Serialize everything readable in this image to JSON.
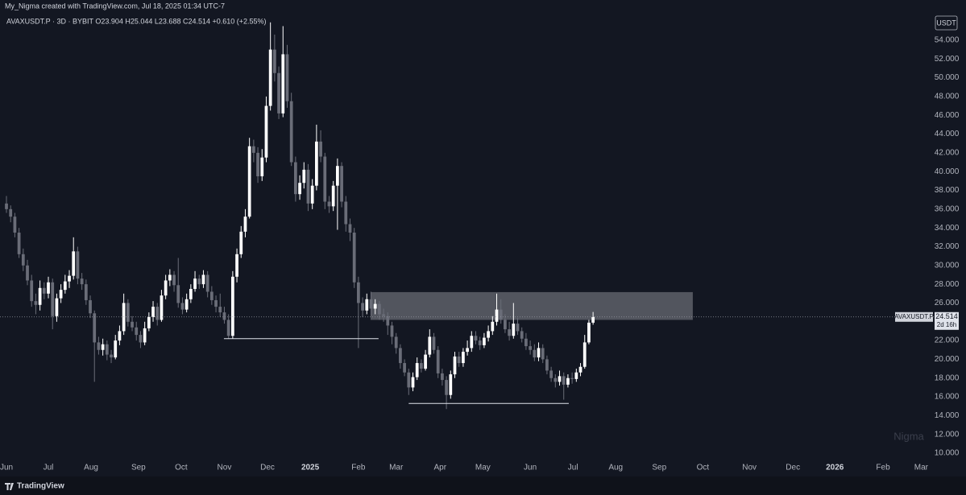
{
  "header": "My_Nigma created with TradingView.com, Jul 18, 2025 01:34 UTC-7",
  "footer": "TradingView",
  "currency_button": "USDT",
  "watermark": "Nigma",
  "chart_data": {
    "type": "candlestick",
    "legend": "AVAXUSDT.P · 3D · BYBIT  O23.904  H25.044  L23.688  C24.514  +0.610 (+2.55%)",
    "up_color": "#ffffff",
    "down_color": "#6a6d78",
    "grid": false,
    "log_scale": false,
    "xlim": [
      -1.54,
      221.5
    ],
    "xticks": [
      {
        "value": 0,
        "label": "Jun"
      },
      {
        "value": 10,
        "label": "Jul"
      },
      {
        "value": 20.2,
        "label": "Aug"
      },
      {
        "value": 31.5,
        "label": "Sep"
      },
      {
        "value": 41.7,
        "label": "Oct"
      },
      {
        "value": 52,
        "label": "Nov"
      },
      {
        "value": 62.3,
        "label": "Dec"
      },
      {
        "value": 72.5,
        "label": "2025"
      },
      {
        "value": 84,
        "label": "Feb"
      },
      {
        "value": 93,
        "label": "Mar"
      },
      {
        "value": 103.5,
        "label": "Apr"
      },
      {
        "value": 113.7,
        "label": "May"
      },
      {
        "value": 125,
        "label": "Jun"
      },
      {
        "value": 135.2,
        "label": "Jul"
      },
      {
        "value": 145.4,
        "label": "Aug"
      },
      {
        "value": 155.8,
        "label": "Sep"
      },
      {
        "value": 166.2,
        "label": "Oct"
      },
      {
        "value": 177.3,
        "label": "Nov"
      },
      {
        "value": 187.7,
        "label": "Dec"
      },
      {
        "value": 197.7,
        "label": "2026"
      },
      {
        "value": 209.2,
        "label": "Feb"
      },
      {
        "value": 218.3,
        "label": "Mar"
      }
    ],
    "ylim": [
      9.23,
      56.74
    ],
    "yticks": [
      {
        "value": 10,
        "label": "10.000"
      },
      {
        "value": 12,
        "label": "12.000"
      },
      {
        "value": 14,
        "label": "14.000"
      },
      {
        "value": 16,
        "label": "16.000"
      },
      {
        "value": 18,
        "label": "18.000"
      },
      {
        "value": 20,
        "label": "20.000"
      },
      {
        "value": 22,
        "label": "22.000"
      },
      {
        "value": 24,
        "label": "24.000"
      },
      {
        "value": 26,
        "label": "26.000"
      },
      {
        "value": 28,
        "label": "28.000"
      },
      {
        "value": 30,
        "label": "30.000"
      },
      {
        "value": 32,
        "label": "32.000"
      },
      {
        "value": 34,
        "label": "34.000"
      },
      {
        "value": 36,
        "label": "36.000"
      },
      {
        "value": 38,
        "label": "38.000"
      },
      {
        "value": 40,
        "label": "40.000"
      },
      {
        "value": 42,
        "label": "42.000"
      },
      {
        "value": 44,
        "label": "44.000"
      },
      {
        "value": 46,
        "label": "46.000"
      },
      {
        "value": 48,
        "label": "48.000"
      },
      {
        "value": 50,
        "label": "50.000"
      },
      {
        "value": 52,
        "label": "52.000"
      },
      {
        "value": 54,
        "label": "54.000"
      }
    ],
    "candles": [
      [
        36.6,
        37.4,
        35.6,
        36.0
      ],
      [
        36.0,
        36.4,
        34.6,
        35.2
      ],
      [
        35.2,
        35.6,
        33.0,
        33.5
      ],
      [
        33.5,
        34.0,
        30.8,
        31.2
      ],
      [
        31.2,
        31.8,
        29.4,
        30.0
      ],
      [
        30.0,
        30.6,
        27.9,
        28.4
      ],
      [
        28.4,
        29.0,
        25.6,
        26.2
      ],
      [
        26.2,
        27.0,
        24.8,
        25.8
      ],
      [
        25.8,
        28.4,
        25.2,
        27.6
      ],
      [
        27.6,
        28.2,
        26.4,
        27.0
      ],
      [
        27.0,
        28.8,
        26.5,
        28.2
      ],
      [
        28.2,
        28.6,
        23.2,
        24.6
      ],
      [
        24.6,
        27.0,
        24.0,
        26.5
      ],
      [
        26.5,
        28.0,
        26.0,
        27.4
      ],
      [
        27.4,
        29.0,
        27.0,
        28.3
      ],
      [
        28.3,
        29.5,
        27.6,
        28.9
      ],
      [
        28.9,
        33.0,
        28.5,
        31.5
      ],
      [
        31.5,
        32.0,
        28.0,
        28.6
      ],
      [
        28.6,
        29.2,
        27.4,
        28.0
      ],
      [
        28.0,
        28.5,
        25.8,
        26.3
      ],
      [
        26.3,
        26.8,
        24.4,
        24.9
      ],
      [
        24.9,
        25.2,
        17.6,
        21.8
      ],
      [
        21.8,
        22.4,
        20.5,
        21.0
      ],
      [
        21.0,
        22.2,
        20.4,
        21.6
      ],
      [
        21.6,
        22.0,
        19.9,
        20.5
      ],
      [
        20.5,
        21.0,
        19.6,
        20.2
      ],
      [
        20.2,
        22.6,
        20.0,
        22.0
      ],
      [
        22.0,
        23.6,
        21.5,
        23.0
      ],
      [
        23.0,
        27.0,
        22.6,
        26.0
      ],
      [
        26.0,
        26.4,
        23.5,
        24.0
      ],
      [
        24.0,
        24.6,
        23.0,
        23.4
      ],
      [
        23.4,
        24.0,
        22.0,
        22.6
      ],
      [
        22.6,
        23.0,
        21.2,
        21.8
      ],
      [
        21.8,
        24.0,
        21.5,
        23.3
      ],
      [
        23.3,
        25.0,
        23.0,
        24.5
      ],
      [
        24.5,
        26.2,
        24.0,
        25.6
      ],
      [
        25.6,
        26.0,
        23.6,
        24.2
      ],
      [
        24.2,
        27.4,
        24.0,
        26.8
      ],
      [
        26.8,
        29.0,
        26.4,
        28.4
      ],
      [
        28.4,
        29.6,
        27.8,
        29.0
      ],
      [
        29.0,
        29.4,
        27.2,
        27.9
      ],
      [
        27.9,
        30.8,
        25.5,
        26.0
      ],
      [
        26.0,
        26.6,
        24.8,
        25.3
      ],
      [
        25.3,
        27.0,
        25.0,
        26.4
      ],
      [
        26.4,
        28.0,
        26.0,
        27.5
      ],
      [
        27.5,
        29.4,
        27.2,
        28.6
      ],
      [
        28.6,
        29.0,
        27.5,
        28.0
      ],
      [
        28.0,
        29.5,
        27.6,
        29.0
      ],
      [
        29.0,
        29.4,
        26.6,
        27.2
      ],
      [
        27.2,
        27.8,
        25.8,
        26.3
      ],
      [
        26.3,
        26.8,
        25.0,
        25.6
      ],
      [
        25.6,
        27.0,
        24.5,
        25.0
      ],
      [
        25.0,
        25.6,
        23.8,
        24.2
      ],
      [
        24.2,
        24.8,
        22.2,
        22.5
      ],
      [
        22.5,
        29.4,
        22.2,
        28.8
      ],
      [
        28.8,
        31.8,
        28.2,
        31.2
      ],
      [
        31.2,
        34.2,
        30.8,
        33.6
      ],
      [
        33.6,
        36.0,
        33.0,
        35.2
      ],
      [
        35.2,
        43.6,
        35.0,
        42.7
      ],
      [
        42.7,
        43.4,
        41.0,
        42.0
      ],
      [
        42.0,
        42.6,
        38.8,
        39.5
      ],
      [
        39.5,
        42.4,
        39.0,
        41.5
      ],
      [
        41.5,
        48.0,
        41.0,
        47.0
      ],
      [
        47.0,
        55.9,
        46.5,
        53.0
      ],
      [
        53.0,
        54.6,
        49.6,
        50.5
      ],
      [
        50.5,
        51.2,
        45.6,
        46.2
      ],
      [
        46.2,
        55.5,
        45.8,
        52.5
      ],
      [
        52.5,
        53.5,
        46.8,
        47.5
      ],
      [
        47.5,
        48.4,
        40.6,
        41.0
      ],
      [
        41.0,
        41.6,
        36.8,
        37.6
      ],
      [
        37.6,
        39.6,
        37.0,
        38.8
      ],
      [
        38.8,
        41.0,
        38.2,
        40.2
      ],
      [
        40.2,
        40.8,
        35.8,
        36.6
      ],
      [
        36.6,
        39.2,
        36.0,
        38.5
      ],
      [
        38.5,
        45.0,
        38.0,
        43.2
      ],
      [
        43.2,
        44.4,
        41.0,
        41.6
      ],
      [
        41.6,
        42.0,
        36.0,
        36.8
      ],
      [
        36.8,
        37.4,
        35.6,
        36.3
      ],
      [
        36.3,
        39.0,
        35.8,
        38.5
      ],
      [
        38.5,
        41.4,
        33.8,
        40.6
      ],
      [
        40.6,
        41.0,
        36.2,
        36.8
      ],
      [
        36.8,
        37.4,
        33.6,
        34.4
      ],
      [
        34.4,
        35.0,
        32.6,
        33.5
      ],
      [
        33.5,
        34.0,
        27.6,
        28.2
      ],
      [
        28.2,
        28.8,
        21.2,
        26.0
      ],
      [
        26.0,
        26.6,
        24.5,
        25.2
      ],
      [
        25.2,
        27.0,
        24.8,
        26.4
      ],
      [
        26.4,
        27.2,
        24.6,
        25.4
      ],
      [
        25.4,
        26.4,
        24.8,
        25.9
      ],
      [
        25.9,
        26.2,
        24.2,
        24.8
      ],
      [
        24.8,
        25.4,
        24.0,
        24.6
      ],
      [
        24.6,
        25.0,
        22.6,
        23.6
      ],
      [
        23.6,
        24.0,
        21.6,
        22.4
      ],
      [
        22.4,
        22.8,
        20.6,
        21.2
      ],
      [
        21.2,
        21.6,
        19.0,
        19.6
      ],
      [
        19.6,
        20.0,
        18.2,
        18.6
      ],
      [
        18.6,
        19.0,
        16.2,
        17.0
      ],
      [
        17.0,
        18.6,
        16.6,
        18.1
      ],
      [
        18.1,
        20.2,
        17.8,
        19.6
      ],
      [
        19.6,
        20.0,
        18.6,
        19.0
      ],
      [
        19.0,
        21.0,
        18.8,
        20.5
      ],
      [
        20.5,
        23.2,
        20.2,
        22.4
      ],
      [
        22.4,
        22.8,
        20.6,
        21.0
      ],
      [
        21.0,
        21.4,
        18.0,
        18.5
      ],
      [
        18.5,
        19.0,
        17.2,
        17.8
      ],
      [
        17.8,
        18.2,
        14.7,
        16.2
      ],
      [
        16.2,
        18.8,
        15.8,
        18.4
      ],
      [
        18.4,
        20.8,
        18.0,
        20.3
      ],
      [
        20.3,
        20.8,
        19.2,
        19.6
      ],
      [
        19.6,
        21.2,
        19.2,
        20.8
      ],
      [
        20.8,
        22.0,
        20.4,
        21.2
      ],
      [
        21.2,
        23.0,
        20.8,
        22.5
      ],
      [
        22.5,
        23.0,
        21.6,
        22.0
      ],
      [
        22.0,
        22.4,
        21.0,
        21.5
      ],
      [
        21.5,
        22.8,
        21.2,
        22.3
      ],
      [
        22.3,
        23.6,
        21.9,
        23.0
      ],
      [
        23.0,
        24.6,
        22.6,
        24.0
      ],
      [
        24.0,
        27.0,
        23.6,
        25.3
      ],
      [
        25.3,
        26.4,
        23.8,
        24.2
      ],
      [
        24.2,
        24.8,
        22.8,
        23.2
      ],
      [
        23.2,
        24.0,
        22.0,
        22.5
      ],
      [
        22.5,
        26.0,
        22.2,
        23.8
      ],
      [
        23.8,
        24.4,
        22.6,
        23.0
      ],
      [
        23.0,
        23.4,
        21.8,
        22.2
      ],
      [
        22.2,
        22.8,
        21.0,
        21.4
      ],
      [
        21.4,
        22.0,
        20.5,
        21.0
      ],
      [
        21.0,
        21.6,
        19.8,
        20.2
      ],
      [
        20.2,
        21.8,
        19.8,
        21.2
      ],
      [
        21.2,
        21.6,
        19.6,
        20.0
      ],
      [
        20.0,
        20.4,
        18.4,
        18.8
      ],
      [
        18.8,
        19.2,
        17.6,
        18.0
      ],
      [
        18.0,
        18.4,
        17.0,
        17.6
      ],
      [
        17.6,
        18.8,
        17.2,
        18.2
      ],
      [
        18.2,
        18.6,
        15.7,
        17.3
      ],
      [
        17.3,
        18.4,
        17.0,
        18.0
      ],
      [
        18.0,
        18.6,
        17.4,
        17.9
      ],
      [
        17.9,
        19.0,
        17.6,
        18.6
      ],
      [
        18.6,
        19.6,
        18.2,
        19.2
      ],
      [
        19.2,
        22.6,
        19.0,
        21.8
      ],
      [
        21.8,
        24.2,
        21.6,
        23.904
      ],
      [
        23.904,
        25.044,
        23.688,
        24.514
      ]
    ],
    "levels": [
      {
        "value": 22.2,
        "x": [
          51.9,
          88.8
        ]
      },
      {
        "value": 15.3,
        "x": [
          96,
          134.2
        ]
      }
    ],
    "zone": {
      "y": [
        24.2,
        27.16
      ],
      "x": [
        86.9,
        163.8
      ]
    },
    "last_price": {
      "symbol": "AVAXUSDT.P",
      "value": 24.514,
      "countdown": "2d 16h"
    }
  }
}
